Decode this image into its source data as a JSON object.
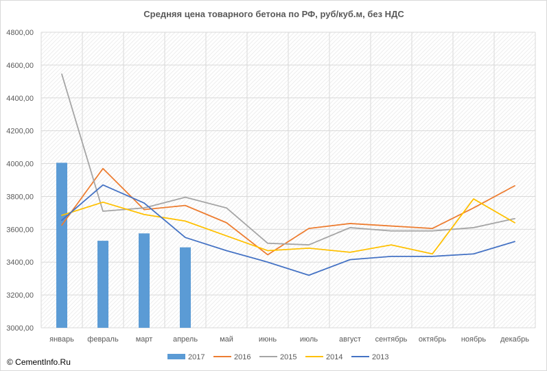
{
  "chart_data": {
    "type": "bar+line",
    "title": "Средняя цена товарного бетона по РФ, руб/куб.м, без НДС",
    "categories": [
      "январь",
      "февраль",
      "март",
      "апрель",
      "май",
      "июнь",
      "июль",
      "август",
      "сентябрь",
      "октябрь",
      "ноябрь",
      "декабрь"
    ],
    "ylim": [
      3000,
      4800
    ],
    "y_ticks": [
      "3000,00",
      "3200,00",
      "3400,00",
      "3600,00",
      "3800,00",
      "4000,00",
      "4200,00",
      "4400,00",
      "4600,00",
      "4800,00"
    ],
    "grid": true,
    "legend_position": "bottom",
    "series": [
      {
        "name": "2017",
        "type": "bar",
        "color": "#5b9bd5",
        "values": [
          4005,
          3530,
          3575,
          3490,
          null,
          null,
          null,
          null,
          null,
          null,
          null,
          null
        ]
      },
      {
        "name": "2016",
        "type": "line",
        "color": "#ed7d31",
        "values": [
          3625,
          3970,
          3720,
          3745,
          3640,
          3445,
          3605,
          3635,
          3620,
          3605,
          3730,
          3865
        ]
      },
      {
        "name": "2015",
        "type": "line",
        "color": "#a5a5a5",
        "values": [
          4545,
          3710,
          3730,
          3795,
          3730,
          3515,
          3505,
          3610,
          3590,
          3590,
          3610,
          3665
        ]
      },
      {
        "name": "2014",
        "type": "line",
        "color": "#ffc000",
        "values": [
          3685,
          3765,
          3690,
          3650,
          3560,
          3470,
          3485,
          3460,
          3505,
          3450,
          3785,
          3640
        ]
      },
      {
        "name": "2013",
        "type": "line",
        "color": "#4472c4",
        "values": [
          3655,
          3870,
          3760,
          3550,
          3470,
          3400,
          3320,
          3415,
          3435,
          3435,
          3450,
          3525
        ]
      }
    ]
  },
  "copyright": "© CementInfo.Ru"
}
